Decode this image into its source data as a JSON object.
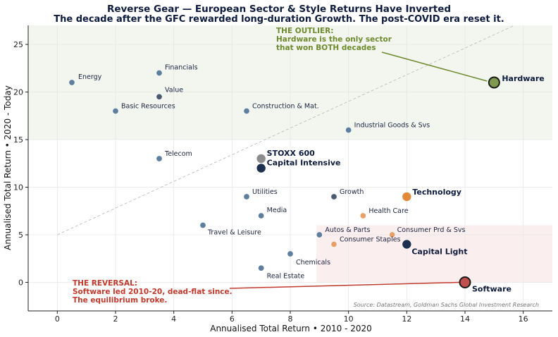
{
  "chart_data": {
    "type": "scatter",
    "title": "Reverse Gear — European Sector & Style Returns Have Inverted",
    "subtitle": "The decade after the GFC rewarded long-duration Growth. The post-COVID era reset it.",
    "xlabel": "Annualised Total Return  •  2010 - 2020",
    "ylabel": "Annualised Total Return  •  2020 - Today",
    "xlim": [
      -1,
      17
    ],
    "ylim": [
      -3,
      27
    ],
    "xticks": [
      0,
      2,
      4,
      6,
      8,
      10,
      12,
      14,
      16
    ],
    "yticks": [
      0,
      5,
      10,
      15,
      20,
      25
    ],
    "grid": true,
    "points": [
      {
        "name": "Energy",
        "x": 0.5,
        "y": 21,
        "group": "sector"
      },
      {
        "name": "Financials",
        "x": 3.5,
        "y": 22,
        "group": "sector"
      },
      {
        "name": "Value",
        "x": 3.5,
        "y": 19.5,
        "group": "style"
      },
      {
        "name": "Basic Resources",
        "x": 2,
        "y": 18,
        "group": "sector"
      },
      {
        "name": "Construction & Mat.",
        "x": 6.5,
        "y": 18,
        "group": "sector"
      },
      {
        "name": "Industrial Goods & Svs",
        "x": 10,
        "y": 16,
        "group": "sector"
      },
      {
        "name": "Telecom",
        "x": 3.5,
        "y": 13,
        "group": "sector"
      },
      {
        "name": "STOXX 600",
        "x": 7,
        "y": 13,
        "group": "index"
      },
      {
        "name": "Capital Intensive",
        "x": 7,
        "y": 12,
        "group": "basket"
      },
      {
        "name": "Utilities",
        "x": 6.5,
        "y": 9,
        "group": "sector"
      },
      {
        "name": "Growth",
        "x": 9.5,
        "y": 9,
        "group": "style"
      },
      {
        "name": "Technology",
        "x": 12,
        "y": 9,
        "group": "growth-sector-big"
      },
      {
        "name": "Media",
        "x": 7,
        "y": 7,
        "group": "sector"
      },
      {
        "name": "Health Care",
        "x": 10.5,
        "y": 7,
        "group": "growth-sector"
      },
      {
        "name": "Travel & Leisure",
        "x": 5,
        "y": 6,
        "group": "sector"
      },
      {
        "name": "Autos & Parts",
        "x": 9,
        "y": 5,
        "group": "sector"
      },
      {
        "name": "Consumer Prd & Svs",
        "x": 11.5,
        "y": 5,
        "group": "growth-sector"
      },
      {
        "name": "Consumer Staples",
        "x": 9.5,
        "y": 4,
        "group": "growth-sector"
      },
      {
        "name": "Capital Light",
        "x": 12,
        "y": 4,
        "group": "basket"
      },
      {
        "name": "Chemicals",
        "x": 8,
        "y": 3,
        "group": "sector"
      },
      {
        "name": "Real Estate",
        "x": 7,
        "y": 1.5,
        "group": "sector"
      },
      {
        "name": "Software",
        "x": 14,
        "y": 0,
        "group": "software"
      },
      {
        "name": "Hardware",
        "x": 15,
        "y": 21,
        "group": "hardware"
      }
    ],
    "annotations": {
      "outlier": "THE OUTLIER:\nHardware is the only sector\nthat won BOTH decades",
      "reversal": "THE REVERSAL:\nSoftware led 2010-20, dead-flat since.\nThe equilibrium broke."
    },
    "source": "Source: Datastream, Goldman Sachs Global Investment Research",
    "colors": {
      "sector": "#5f7f9e",
      "style": "#4b5a70",
      "index": "#8c8c8c",
      "basket": "#1d2f4f",
      "growth-sector": "#e8a06a",
      "growth-sector-big": "#e08a3a",
      "software": "#c0504d",
      "hardware": "#7f9a4e",
      "outlier_text": "#6e8a2e",
      "reversal_text": "#c0392b",
      "top_band": "#f2f6ef",
      "corner_band": "#fbeeee"
    }
  }
}
